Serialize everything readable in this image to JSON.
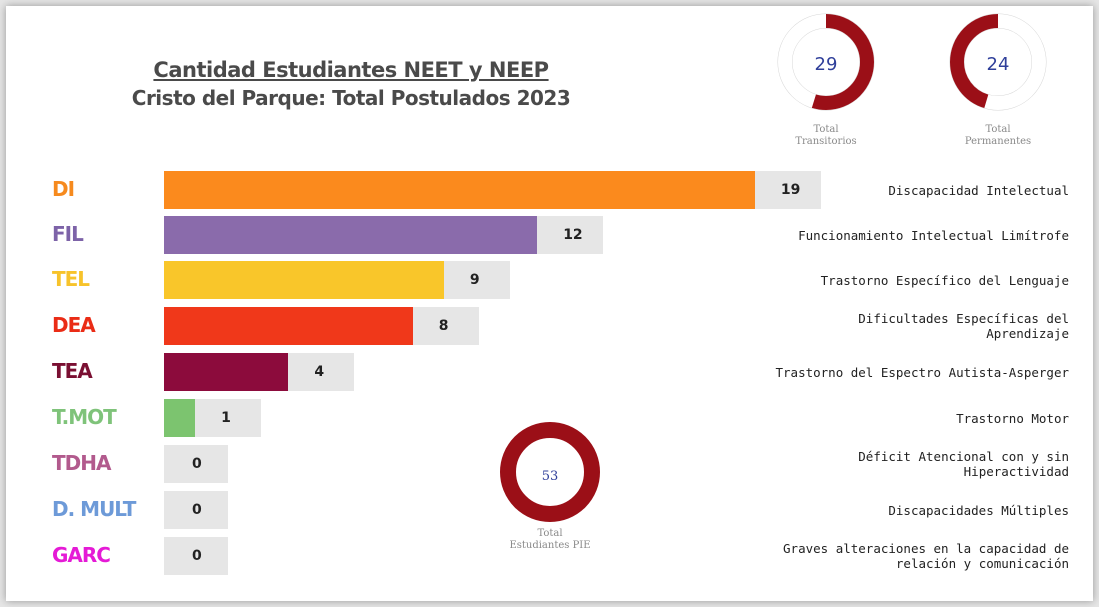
{
  "title": "Cantidad Estudiantes NEET y NEEP",
  "subtitle": "Cristo del Parque: Total Postulados 2023",
  "donuts": {
    "transitorios": {
      "value": "29",
      "label_line1": "Total",
      "label_line2": "Transitorios",
      "fraction": 0.547
    },
    "permanentes": {
      "value": "24",
      "label_line1": "Total",
      "label_line2": "Permanentes",
      "fraction": 0.453
    },
    "total": {
      "value": "53",
      "label_line1": "Total",
      "label_line2": "Estudiantes PIE",
      "fraction": 1.0
    }
  },
  "colors": {
    "donut_fill": "#9b0f17",
    "donut_track": "#ffffff",
    "donut_value_text": "#2f3f9a",
    "value_box": "#e6e6e6"
  },
  "chart_data": {
    "type": "bar",
    "orientation": "horizontal",
    "categories": [
      "DI",
      "FIL",
      "TEL",
      "DEA",
      "TEA",
      "T.MOT",
      "TDHA",
      "D. MULT",
      "GARC"
    ],
    "values": [
      19,
      12,
      9,
      8,
      4,
      1,
      0,
      0,
      0
    ],
    "value_labels": [
      "19",
      "12",
      "9",
      "8",
      "4",
      "1",
      "0",
      "0",
      "0"
    ],
    "descriptions": [
      [
        "Discapacidad Intelectual"
      ],
      [
        "Funcionamiento Intelectual Limítrofe"
      ],
      [
        "Trastorno Específico del Lenguaje"
      ],
      [
        "Dificultades Específicas del",
        "Aprendizaje"
      ],
      [
        "Trastorno del Espectro Autista-Asperger"
      ],
      [
        "Trastorno Motor"
      ],
      [
        "Déficit Atencional con y sin",
        "Hiperactividad"
      ],
      [
        "Discapacidades Múltiples"
      ],
      [
        "Graves alteraciones en la capacidad de",
        "relación y comunicación"
      ]
    ],
    "bar_colors": [
      "#fb8a1d",
      "#8a6bab",
      "#f9c62a",
      "#f0381a",
      "#8c0b3c",
      "#7cc46f",
      "#b15a8e",
      "#6d9cda",
      "#f21ae1"
    ],
    "label_colors": [
      "#f68a1e",
      "#7d63a8",
      "#f7c32b",
      "#ea2c16",
      "#7a0f32",
      "#7fc37a",
      "#b25a8d",
      "#6d9ad8",
      "#e51ad6"
    ],
    "xlim": [
      0,
      19
    ],
    "title": "Cantidad Estudiantes NEET y NEEP",
    "subtitle": "Cristo del Parque: Total Postulados 2023"
  }
}
